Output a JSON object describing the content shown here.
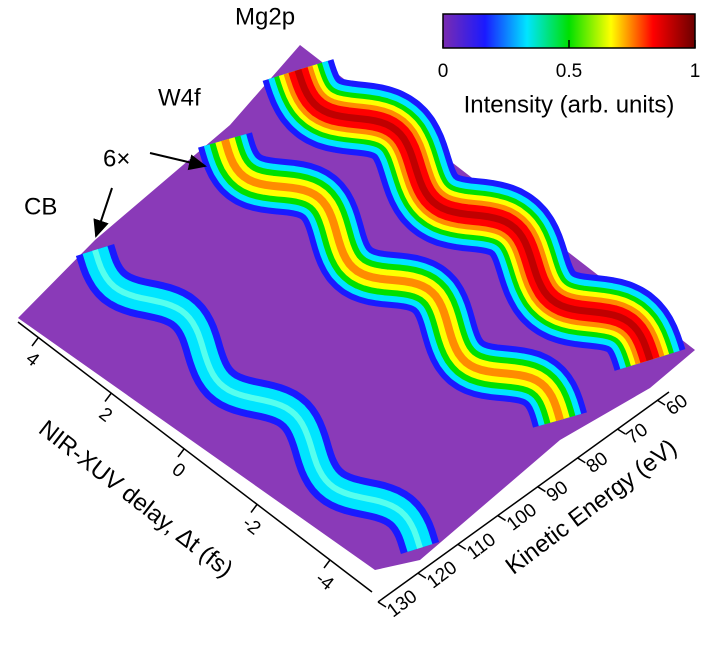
{
  "chart_data": {
    "type": "surface",
    "annotations": [
      "CB",
      "W4f",
      "Mg2p",
      "6×"
    ],
    "xlabel": "Kinetic Energy (eV)",
    "xlim": [
      60,
      130
    ],
    "xticks": [
      60,
      70,
      80,
      90,
      100,
      110,
      120,
      130
    ],
    "ylabel": "NIR-XUV delay, Δt (fs)",
    "ylim": [
      4,
      -4
    ],
    "yticks": [
      4,
      2,
      0,
      -2,
      -4
    ],
    "colorbar": {
      "label": "Intensity (arb. units)",
      "zlim": [
        0,
        1
      ],
      "zticks": [
        0,
        0.5,
        1
      ],
      "colors": [
        "#7a2bb0",
        "#1a1aff",
        "#00e5ff",
        "#00e000",
        "#ffff00",
        "#ff0000",
        "#6b0000"
      ]
    }
  }
}
